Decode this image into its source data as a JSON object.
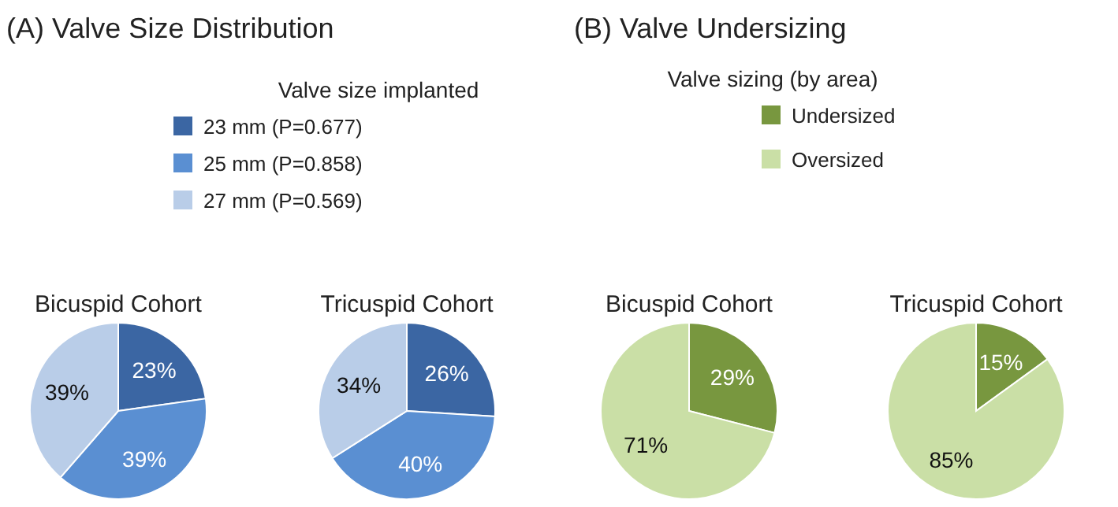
{
  "chart_data": [
    {
      "type": "pie",
      "annotations": [
        "(A) Valve Size Distribution"
      ],
      "title": "Bicuspid Cohort",
      "legend_title": "Valve size implanted",
      "legend": "top",
      "categories": [
        "23 mm (P=0.677)",
        "25 mm (P=0.858)",
        "27 mm (P=0.569)"
      ],
      "values": [
        23,
        39,
        39
      ],
      "value_labels": [
        "23%",
        "39%",
        "39%"
      ],
      "colors": [
        "#3b66a3",
        "#5a8fd2",
        "#b9cde8"
      ]
    },
    {
      "type": "pie",
      "title": "Tricuspid Cohort",
      "categories": [
        null,
        null,
        null
      ],
      "values": [
        26,
        40,
        34
      ],
      "value_labels": [
        "26%",
        "40%",
        "34%"
      ],
      "colors": [
        "#3b66a3",
        "#5a8fd2",
        "#b9cde8"
      ]
    },
    {
      "type": "pie",
      "annotations": [
        "(B) Valve Undersizing"
      ],
      "title": "Bicuspid Cohort",
      "legend_title": "Valve sizing (by area)",
      "legend": "top",
      "categories": [
        "Undersized",
        "Oversized"
      ],
      "values": [
        29,
        71
      ],
      "value_labels": [
        "29%",
        "71%"
      ],
      "colors": [
        "#78973f",
        "#cadfa6"
      ]
    },
    {
      "type": "pie",
      "title": "Tricuspid Cohort",
      "categories": [
        null,
        null
      ],
      "values": [
        15,
        85
      ],
      "value_labels": [
        "15%",
        "85%"
      ],
      "colors": [
        "#78973f",
        "#cadfa6"
      ]
    }
  ]
}
